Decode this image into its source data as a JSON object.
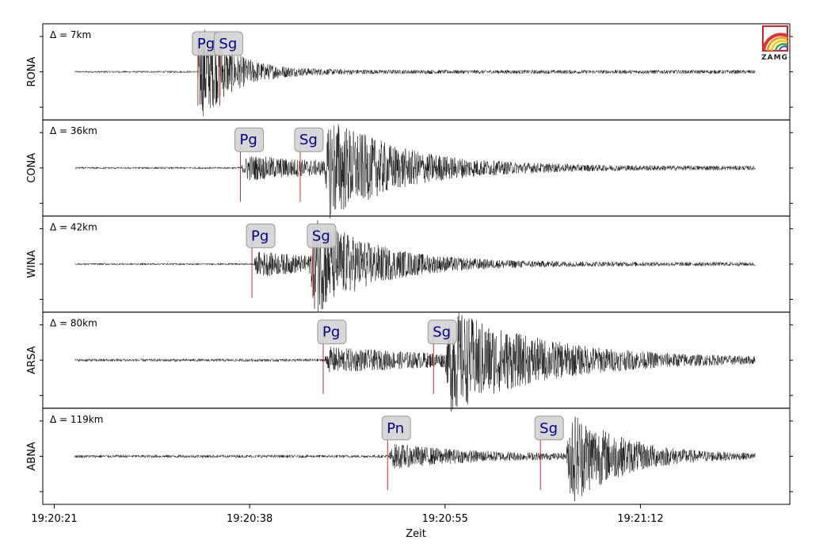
{
  "chart_data": {
    "type": "line",
    "xlabel": "Zeit",
    "x_ticks": [
      "19:20:21",
      "19:20:38",
      "19:20:55",
      "19:21:12"
    ],
    "x_range_seconds": [
      -1.0,
      64.0
    ],
    "logo_text": "ZAMG",
    "panels": [
      {
        "station": "RONA",
        "distance_label": "Δ = 7km",
        "phases": [
          {
            "name": "Pg",
            "t": 12.5
          },
          {
            "name": "Sg",
            "t": 14.4
          }
        ],
        "signal": {
          "onset": 12.5,
          "peak": 12.6,
          "amp": 0.85,
          "decay": 2.5,
          "noise": 0.02
        }
      },
      {
        "station": "CONA",
        "distance_label": "Δ = 36km",
        "phases": [
          {
            "name": "Pg",
            "t": 16.2
          },
          {
            "name": "Sg",
            "t": 21.4
          }
        ],
        "signal": {
          "onset": 16.2,
          "peak": 24.0,
          "amp": 0.95,
          "decay": 6.0,
          "noise": 0.02
        }
      },
      {
        "station": "WINA",
        "distance_label": "Δ = 42km",
        "phases": [
          {
            "name": "Pg",
            "t": 17.2
          },
          {
            "name": "Sg",
            "t": 22.5
          }
        ],
        "signal": {
          "onset": 17.2,
          "peak": 22.7,
          "amp": 0.9,
          "decay": 5.0,
          "noise": 0.02
        }
      },
      {
        "station": "ARSA",
        "distance_label": "Δ = 80km",
        "phases": [
          {
            "name": "Pg",
            "t": 23.4
          },
          {
            "name": "Sg",
            "t": 33.0
          }
        ],
        "signal": {
          "onset": 23.4,
          "peak": 34.5,
          "amp": 0.95,
          "decay": 8.0,
          "noise": 0.03
        }
      },
      {
        "station": "ABNA",
        "distance_label": "Δ = 119km",
        "phases": [
          {
            "name": "Pn",
            "t": 29.0
          },
          {
            "name": "Sg",
            "t": 42.3
          }
        ],
        "signal": {
          "onset": 29.0,
          "peak": 45.0,
          "amp": 0.95,
          "decay": 4.5,
          "noise": 0.03
        }
      }
    ],
    "trace_start_seconds": 1.8,
    "trace_end_seconds": 61.0
  }
}
